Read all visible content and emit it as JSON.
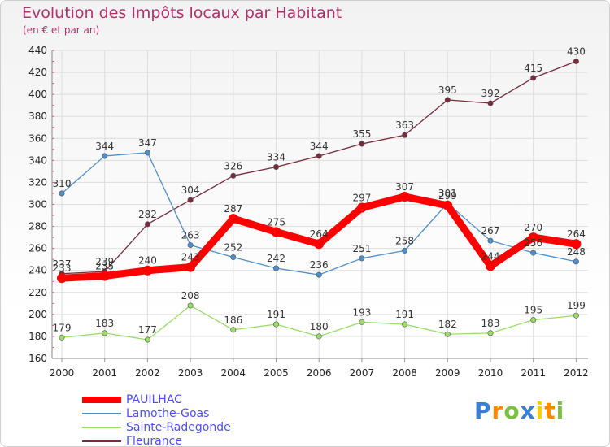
{
  "header": {
    "title": "Evolution des Impôts locaux par Habitant",
    "subtitle": "(en € et par an)"
  },
  "logo": {
    "text": "Proxiti",
    "letter_colors": [
      "#3a7fd5",
      "#ff8a00",
      "#7ac142",
      "#3a7fd5",
      "#ffcc00",
      "#ff8a00",
      "#7ac142"
    ]
  },
  "chart_data": {
    "type": "line",
    "title": "Evolution des Impôts locaux par Habitant",
    "subtitle": "(en € et par an)",
    "xlabel": "",
    "ylabel": "",
    "x": [
      "2000",
      "2001",
      "2002",
      "2003",
      "2004",
      "2005",
      "2006",
      "2007",
      "2008",
      "2009",
      "2010",
      "2011",
      "2012"
    ],
    "ylim": [
      160,
      440
    ],
    "yticks": [
      160,
      180,
      200,
      220,
      240,
      260,
      280,
      300,
      320,
      340,
      360,
      380,
      400,
      420,
      440
    ],
    "grid": true,
    "legend_position": "bottom-left",
    "series": [
      {
        "name": "PAUILHAC",
        "color": "#ff0000",
        "values": [
          233,
          235,
          240,
          243,
          287,
          275,
          264,
          297,
          307,
          299,
          244,
          270,
          264
        ]
      },
      {
        "name": "Lamothe-Goas",
        "color": "#4d8fcc",
        "values": [
          310,
          344,
          347,
          263,
          252,
          242,
          236,
          251,
          258,
          301,
          267,
          256,
          248
        ]
      },
      {
        "name": "Sainte-Radegonde",
        "color": "#99dd66",
        "values": [
          179,
          183,
          177,
          208,
          186,
          191,
          180,
          193,
          191,
          182,
          183,
          195,
          199
        ]
      },
      {
        "name": "Fleurance",
        "color": "#7a2a3a",
        "values": [
          237,
          239,
          282,
          304,
          326,
          334,
          344,
          355,
          363,
          395,
          392,
          415,
          430
        ]
      }
    ]
  }
}
